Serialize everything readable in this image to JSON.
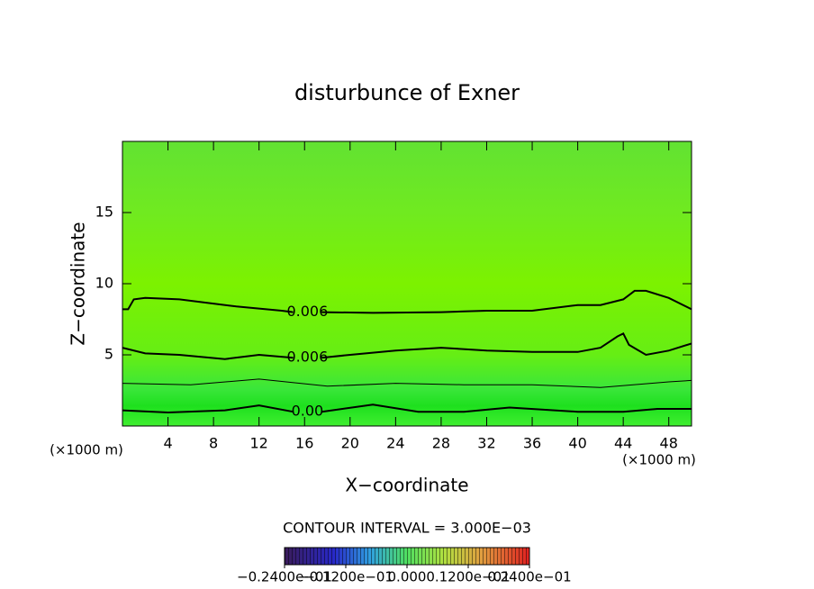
{
  "chart_data": {
    "type": "contour",
    "title": "disturbunce of Exner",
    "x_label": "X−coordinate",
    "y_label": "Z−coordinate",
    "x_scale_label": "(×1000 m)",
    "y_scale_label": "(×1000 m)",
    "xlim": [
      0,
      50
    ],
    "ylim": [
      0,
      20
    ],
    "xticks": [
      4,
      8,
      12,
      16,
      20,
      24,
      28,
      32,
      36,
      40,
      44,
      48
    ],
    "yticks": [
      5,
      10,
      15
    ],
    "contours": [
      {
        "label": "0.006",
        "x": [
          0,
          0.5,
          1,
          2,
          5,
          10,
          14,
          15,
          null,
          17.5,
          22,
          28,
          30,
          32,
          36,
          40,
          42,
          44,
          45,
          46,
          48,
          50
        ],
        "y": [
          8.2,
          8.2,
          8.9,
          9.0,
          8.9,
          8.4,
          8.1,
          8.0,
          null,
          8.0,
          7.95,
          8.0,
          8.05,
          8.1,
          8.1,
          8.5,
          8.5,
          8.9,
          9.5,
          9.5,
          9.0,
          8.2
        ]
      },
      {
        "label": "0.006",
        "x": [
          0,
          2,
          5,
          9,
          12,
          15,
          null,
          17.5,
          20,
          24,
          28,
          32,
          36,
          40,
          42,
          43.5,
          44,
          44.5,
          46,
          48,
          50
        ],
        "y": [
          5.5,
          5.1,
          5.0,
          4.7,
          5.0,
          4.8,
          null,
          4.8,
          5.0,
          5.3,
          5.5,
          5.3,
          5.2,
          5.2,
          5.5,
          6.3,
          6.5,
          5.7,
          5.0,
          5.3,
          5.8
        ]
      },
      {
        "x": [
          0,
          6,
          12,
          18,
          24,
          30,
          36,
          42,
          48,
          50
        ],
        "y": [
          3.0,
          2.9,
          3.3,
          2.8,
          3.0,
          2.9,
          2.9,
          2.7,
          3.1,
          3.2
        ]
      },
      {
        "label": "0.00",
        "x": [
          0,
          4,
          9,
          12,
          15,
          null,
          17.5,
          22,
          26,
          30,
          34,
          40,
          44,
          47,
          50
        ],
        "y": [
          1.1,
          0.95,
          1.1,
          1.45,
          1.0,
          null,
          1.0,
          1.5,
          1.0,
          1.0,
          1.3,
          1.0,
          1.0,
          1.2,
          1.2
        ]
      }
    ],
    "contour_interval_text": "CONTOUR INTERVAL = 3.000E−03",
    "colorbar": {
      "lim": [
        -0.024,
        0.024
      ],
      "ticks": [
        {
          "value": -0.024,
          "label": "−0.2400e−01"
        },
        {
          "value": -0.012,
          "label": "−0.1200e−01"
        },
        {
          "value": 0,
          "label": "0.000"
        },
        {
          "value": 0.012,
          "label": "0.1200e−01"
        },
        {
          "value": 0.024,
          "label": "0.2400e−01"
        }
      ]
    }
  }
}
